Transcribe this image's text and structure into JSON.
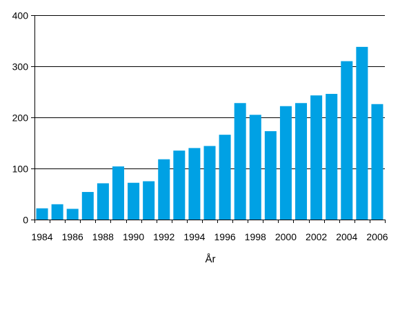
{
  "chart_data": {
    "type": "bar",
    "title": "",
    "xlabel": "År",
    "ylabel": "",
    "ylim": [
      0,
      400
    ],
    "y_ticks": [
      "0",
      "100",
      "200",
      "300",
      "400"
    ],
    "x_tick_labels": [
      "1984",
      "1986",
      "1988",
      "1990",
      "1992",
      "1994",
      "1996",
      "1998",
      "2000",
      "2002",
      "2004",
      "2006"
    ],
    "categories": [
      "1984",
      "1985",
      "1986",
      "1987",
      "1988",
      "1989",
      "1990",
      "1991",
      "1992",
      "1993",
      "1994",
      "1995",
      "1996",
      "1997",
      "1998",
      "1999",
      "2000",
      "2001",
      "2002",
      "2003",
      "2004",
      "2005",
      "2006"
    ],
    "values": [
      22,
      30,
      21,
      54,
      71,
      104,
      72,
      75,
      118,
      135,
      140,
      144,
      166,
      228,
      205,
      173,
      222,
      228,
      243,
      246,
      310,
      338,
      226
    ],
    "grid": true,
    "legend": "none",
    "colors": {
      "bar": "#00a1e4",
      "grid": "#000000",
      "axis": "#000000"
    }
  }
}
